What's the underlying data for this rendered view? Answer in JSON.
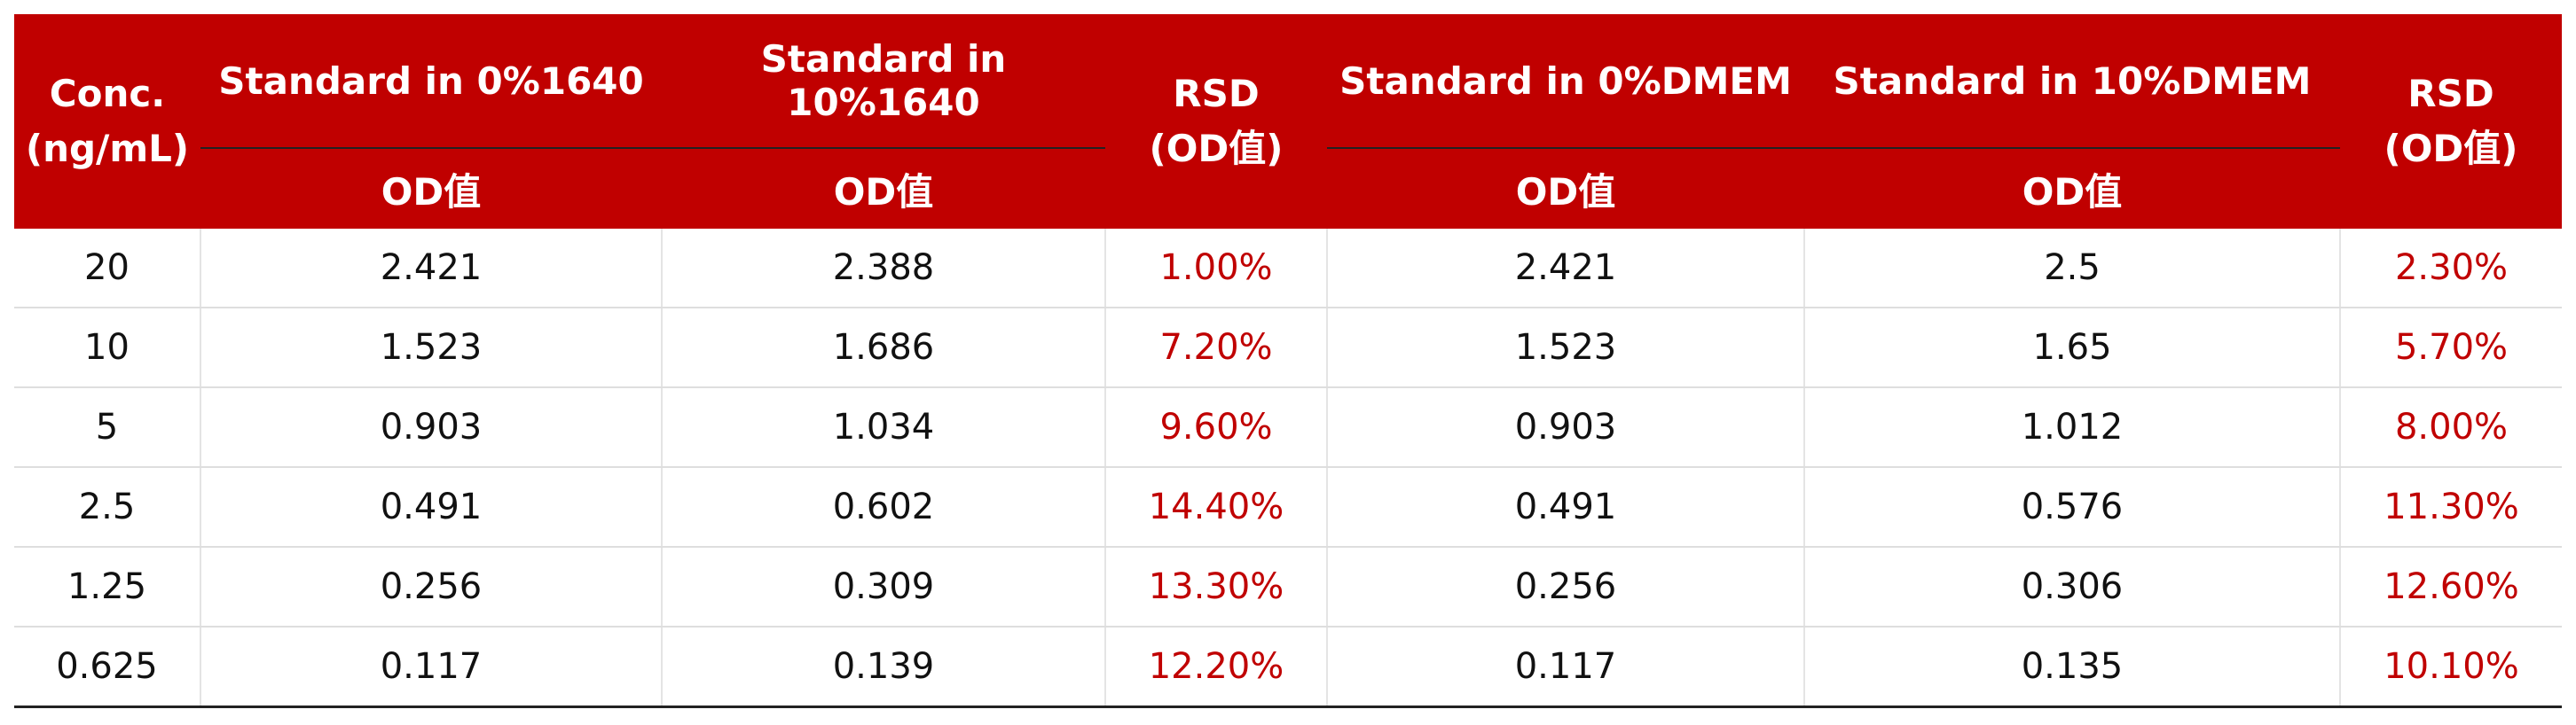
{
  "header": {
    "conc_line1": "Conc.",
    "conc_line2": "(ng/mL)",
    "groups": [
      "Standard in 0%1640",
      "Standard in 10%1640",
      "Standard in 0%DMEM",
      "Standard in 10%DMEM"
    ],
    "rsd_line1": "RSD",
    "rsd_line2": "(OD值)",
    "od_label": "OD值"
  },
  "rows": [
    {
      "conc": "20",
      "a": "2.421",
      "b": "2.388",
      "rsd1": "1.00%",
      "c": "2.421",
      "d": "2.5",
      "rsd2": "2.30%"
    },
    {
      "conc": "10",
      "a": "1.523",
      "b": "1.686",
      "rsd1": "7.20%",
      "c": "1.523",
      "d": "1.65",
      "rsd2": "5.70%"
    },
    {
      "conc": "5",
      "a": "0.903",
      "b": "1.034",
      "rsd1": "9.60%",
      "c": "0.903",
      "d": "1.012",
      "rsd2": "8.00%"
    },
    {
      "conc": "2.5",
      "a": "0.491",
      "b": "0.602",
      "rsd1": "14.40%",
      "c": "0.491",
      "d": "0.576",
      "rsd2": "11.30%"
    },
    {
      "conc": "1.25",
      "a": "0.256",
      "b": "0.309",
      "rsd1": "13.30%",
      "c": "0.256",
      "d": "0.306",
      "rsd2": "12.60%"
    },
    {
      "conc": "0.625",
      "a": "0.117",
      "b": "0.139",
      "rsd1": "12.20%",
      "c": "0.117",
      "d": "0.135",
      "rsd2": "10.10%"
    }
  ],
  "colors": {
    "header_bg": "#c00000",
    "rsd_text": "#c00000"
  }
}
